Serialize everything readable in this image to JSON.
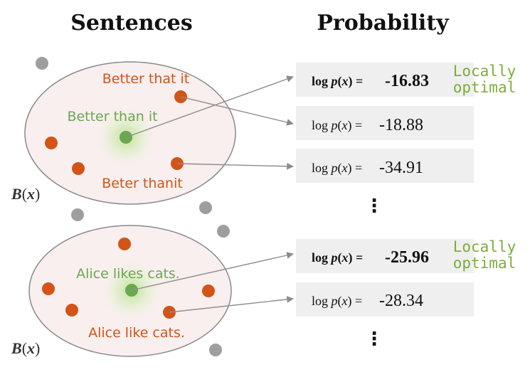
{
  "headers": {
    "left": "Sentences",
    "right": "Probability"
  },
  "set_label_main": "B",
  "set_label_paren_open": "(",
  "set_label_var": "x",
  "set_label_paren_close": ")",
  "groups": [
    {
      "center_sentence": "Better than it",
      "neighbor_sentences": [
        "Better that it",
        "Beter thanit"
      ],
      "rows": [
        {
          "prefix": "log",
          "p": "p",
          "open": "(",
          "x": "x",
          "close": ")",
          "eq": "=",
          "value": "-16.83",
          "bold": true,
          "tag_line1": "Locally",
          "tag_line2": "optimal"
        },
        {
          "prefix": "log",
          "p": "p",
          "open": "(",
          "x": "x",
          "close": ")",
          "eq": "=",
          "value": "-18.88",
          "bold": false
        },
        {
          "prefix": "log",
          "p": "p",
          "open": "(",
          "x": "x",
          "close": ")",
          "eq": "=",
          "value": "-34.91",
          "bold": false
        }
      ],
      "ellipsis": "⋮"
    },
    {
      "center_sentence": "Alice likes cats.",
      "neighbor_sentences": [
        "Alice like cats."
      ],
      "rows": [
        {
          "prefix": "log",
          "p": "p",
          "open": "(",
          "x": "x",
          "close": ")",
          "eq": "=",
          "value": "-25.96",
          "bold": true,
          "tag_line1": "Locally",
          "tag_line2": "optimal"
        },
        {
          "prefix": "log",
          "p": "p",
          "open": "(",
          "x": "x",
          "close": ")",
          "eq": "=",
          "value": "-28.34",
          "bold": false
        }
      ],
      "ellipsis": "⋮"
    }
  ],
  "colors": {
    "neighbor": "#d35418",
    "center": "#6aa84f",
    "outside": "#9e9e9e",
    "ellipse_fill": "#f9efef",
    "ellipse_stroke": "#8a8a8a",
    "tag": "#7cad3c",
    "row_box": "#efefef"
  }
}
